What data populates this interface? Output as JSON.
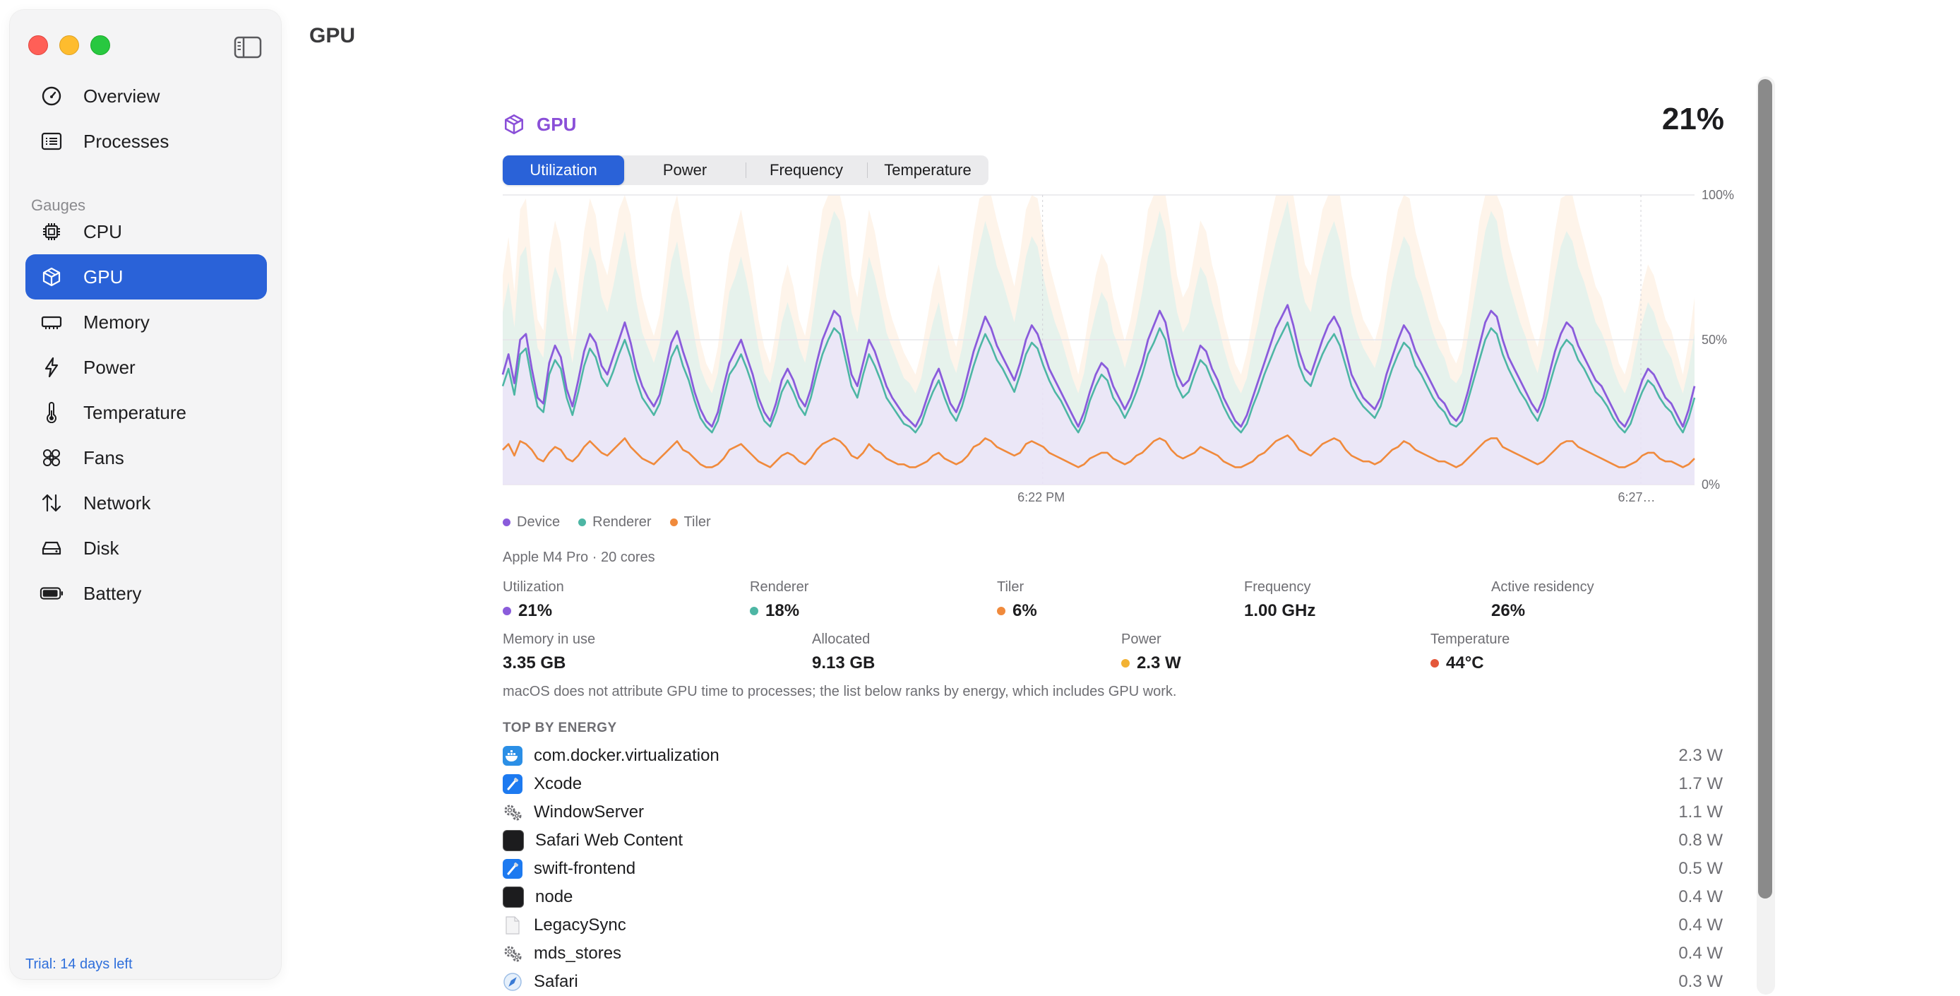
{
  "window": {
    "title": "GPU"
  },
  "sidebar": {
    "items": [
      {
        "label": "Overview",
        "icon": "gauge-icon"
      },
      {
        "label": "Processes",
        "icon": "list-icon"
      }
    ],
    "section_label": "Gauges",
    "gauges": [
      {
        "label": "CPU",
        "icon": "chip-icon"
      },
      {
        "label": "GPU",
        "icon": "cube-icon",
        "active": true
      },
      {
        "label": "Memory",
        "icon": "memory-icon"
      },
      {
        "label": "Power",
        "icon": "bolt-icon"
      },
      {
        "label": "Temperature",
        "icon": "thermometer-icon"
      },
      {
        "label": "Fans",
        "icon": "fan-icon"
      },
      {
        "label": "Network",
        "icon": "arrows-up-down-icon"
      },
      {
        "label": "Disk",
        "icon": "disk-icon"
      },
      {
        "label": "Battery",
        "icon": "battery-icon"
      }
    ],
    "trial": "Trial: 14 days left"
  },
  "gpu": {
    "title": "GPU",
    "utilization_big": "21%",
    "tabs": [
      "Utilization",
      "Power",
      "Frequency",
      "Temperature"
    ],
    "active_tab": 0,
    "device": "Apple M4 Pro · 20 cores",
    "stats_row1": [
      {
        "label": "Utilization",
        "value": "21%",
        "color": "#8a5cdb"
      },
      {
        "label": "Renderer",
        "value": "18%",
        "color": "#4db6a4"
      },
      {
        "label": "Tiler",
        "value": "6%",
        "color": "#f08a3c"
      },
      {
        "label": "Frequency",
        "value": "1.00 GHz"
      },
      {
        "label": "Active residency",
        "value": "26%"
      }
    ],
    "stats_row2": [
      {
        "label": "Memory in use",
        "value": "3.35 GB"
      },
      {
        "label": "Allocated",
        "value": "9.13 GB"
      },
      {
        "label": "Power",
        "value": "2.3 W",
        "color": "#f2b233"
      },
      {
        "label": "Temperature",
        "value": "44°C",
        "color": "#e4573a"
      }
    ],
    "note": "macOS does not attribute GPU time to processes; the list below ranks by energy, which includes GPU work.",
    "top_label": "TOP BY ENERGY",
    "processes": [
      {
        "name": "com.docker.virtualization",
        "value": "2.3 W",
        "icon": "docker-icon"
      },
      {
        "name": "Xcode",
        "value": "1.7 W",
        "icon": "xcode-icon"
      },
      {
        "name": "WindowServer",
        "value": "1.1 W",
        "icon": "gears-icon"
      },
      {
        "name": "Safari Web Content",
        "value": "0.8 W",
        "icon": "terminal-icon"
      },
      {
        "name": "swift-frontend",
        "value": "0.5 W",
        "icon": "xcode-icon"
      },
      {
        "name": "node",
        "value": "0.4 W",
        "icon": "terminal-icon"
      },
      {
        "name": "LegacySync",
        "value": "0.4 W",
        "icon": "document-icon"
      },
      {
        "name": "mds_stores",
        "value": "0.4 W",
        "icon": "gears-icon"
      },
      {
        "name": "Safari",
        "value": "0.3 W",
        "icon": "compass-icon"
      }
    ]
  },
  "chart_data": {
    "type": "line",
    "y_ticks": [
      "100%",
      "50%",
      "0%"
    ],
    "ylim": [
      0,
      100
    ],
    "x_tick_labels": [
      "6:22 PM",
      "6:27…"
    ],
    "grid": true,
    "legend_position": "bottom-left",
    "series": [
      {
        "name": "Device",
        "color": "#8a5cdb"
      },
      {
        "name": "Renderer",
        "color": "#4db6a4"
      },
      {
        "name": "Tiler",
        "color": "#f08a3c"
      }
    ],
    "samples": {
      "device": [
        38,
        45,
        35,
        50,
        52,
        40,
        30,
        28,
        42,
        48,
        44,
        33,
        27,
        36,
        46,
        52,
        49,
        41,
        38,
        44,
        50,
        56,
        49,
        40,
        34,
        30,
        27,
        31,
        40,
        49,
        53,
        46,
        40,
        32,
        26,
        22,
        20,
        25,
        34,
        42,
        46,
        50,
        44,
        38,
        30,
        25,
        22,
        28,
        36,
        40,
        36,
        30,
        27,
        33,
        42,
        50,
        55,
        60,
        58,
        48,
        38,
        34,
        42,
        50,
        46,
        40,
        34,
        30,
        27,
        24,
        22,
        20,
        24,
        30,
        36,
        40,
        34,
        28,
        25,
        30,
        38,
        46,
        52,
        58,
        54,
        48,
        44,
        40,
        36,
        42,
        50,
        55,
        52,
        46,
        40,
        36,
        32,
        28,
        24,
        20,
        25,
        32,
        38,
        42,
        40,
        34,
        30,
        26,
        30,
        36,
        42,
        50,
        55,
        60,
        56,
        46,
        38,
        34,
        36,
        42,
        48,
        46,
        40,
        36,
        30,
        26,
        22,
        20,
        24,
        30,
        36,
        42,
        48,
        54,
        58,
        62,
        55,
        46,
        40,
        38,
        44,
        50,
        55,
        58,
        54,
        46,
        38,
        34,
        30,
        28,
        26,
        30,
        38,
        44,
        50,
        55,
        52,
        46,
        42,
        38,
        34,
        30,
        28,
        24,
        22,
        25,
        32,
        40,
        48,
        56,
        60,
        58,
        50,
        44,
        40,
        36,
        32,
        28,
        25,
        30,
        38,
        46,
        52,
        56,
        54,
        48,
        44,
        40,
        36,
        34,
        30,
        26,
        22,
        20,
        24,
        30,
        36,
        40,
        38,
        34,
        30,
        28,
        24,
        20,
        26,
        34
      ],
      "renderer": [
        34,
        40,
        31,
        45,
        47,
        36,
        27,
        25,
        38,
        43,
        40,
        30,
        24,
        32,
        41,
        47,
        44,
        37,
        34,
        39,
        45,
        50,
        44,
        36,
        30,
        27,
        24,
        28,
        36,
        44,
        48,
        41,
        36,
        29,
        23,
        20,
        18,
        22,
        30,
        38,
        41,
        45,
        40,
        34,
        27,
        22,
        20,
        25,
        32,
        36,
        32,
        27,
        24,
        30,
        38,
        45,
        50,
        54,
        52,
        43,
        34,
        30,
        38,
        45,
        41,
        36,
        30,
        27,
        24,
        21,
        20,
        18,
        21,
        27,
        32,
        36,
        30,
        25,
        22,
        27,
        34,
        41,
        47,
        52,
        48,
        43,
        40,
        36,
        32,
        38,
        45,
        49,
        47,
        41,
        36,
        32,
        29,
        25,
        21,
        18,
        22,
        29,
        34,
        38,
        36,
        30,
        27,
        23,
        27,
        32,
        38,
        45,
        49,
        54,
        50,
        41,
        34,
        30,
        32,
        38,
        43,
        41,
        36,
        32,
        27,
        23,
        20,
        18,
        21,
        27,
        32,
        38,
        43,
        48,
        52,
        56,
        49,
        41,
        36,
        34,
        40,
        45,
        49,
        52,
        48,
        41,
        34,
        30,
        27,
        25,
        23,
        27,
        34,
        40,
        45,
        49,
        47,
        41,
        38,
        34,
        30,
        27,
        25,
        21,
        20,
        22,
        29,
        36,
        43,
        50,
        54,
        52,
        45,
        40,
        36,
        32,
        29,
        25,
        22,
        27,
        34,
        41,
        47,
        50,
        48,
        43,
        40,
        36,
        32,
        30,
        27,
        23,
        20,
        18,
        21,
        27,
        32,
        36,
        34,
        30,
        27,
        25,
        21,
        18,
        23,
        30
      ],
      "tiler": [
        12,
        14,
        10,
        15,
        14,
        12,
        9,
        8,
        11,
        13,
        12,
        9,
        8,
        10,
        13,
        15,
        13,
        11,
        10,
        12,
        14,
        16,
        13,
        11,
        9,
        8,
        7,
        9,
        11,
        13,
        15,
        12,
        11,
        9,
        7,
        6,
        6,
        7,
        9,
        12,
        13,
        14,
        12,
        10,
        8,
        7,
        6,
        8,
        10,
        11,
        10,
        8,
        7,
        9,
        12,
        14,
        15,
        16,
        15,
        13,
        10,
        9,
        11,
        14,
        12,
        11,
        9,
        8,
        7,
        7,
        6,
        6,
        7,
        8,
        10,
        11,
        9,
        8,
        7,
        8,
        10,
        13,
        14,
        16,
        15,
        13,
        12,
        11,
        10,
        11,
        14,
        15,
        14,
        13,
        11,
        10,
        9,
        8,
        7,
        6,
        7,
        9,
        10,
        11,
        11,
        9,
        8,
        7,
        8,
        10,
        11,
        13,
        15,
        16,
        15,
        12,
        10,
        9,
        10,
        11,
        13,
        12,
        11,
        10,
        8,
        7,
        6,
        6,
        7,
        8,
        10,
        11,
        13,
        15,
        16,
        17,
        15,
        12,
        11,
        10,
        12,
        14,
        15,
        16,
        15,
        12,
        10,
        9,
        8,
        8,
        7,
        8,
        10,
        12,
        13,
        15,
        14,
        12,
        11,
        10,
        9,
        8,
        8,
        7,
        6,
        7,
        9,
        11,
        13,
        15,
        16,
        16,
        13,
        12,
        11,
        10,
        9,
        8,
        7,
        8,
        10,
        12,
        14,
        15,
        15,
        13,
        12,
        11,
        10,
        9,
        8,
        7,
        6,
        6,
        7,
        8,
        10,
        11,
        11,
        9,
        8,
        8,
        7,
        6,
        7,
        9
      ]
    }
  }
}
